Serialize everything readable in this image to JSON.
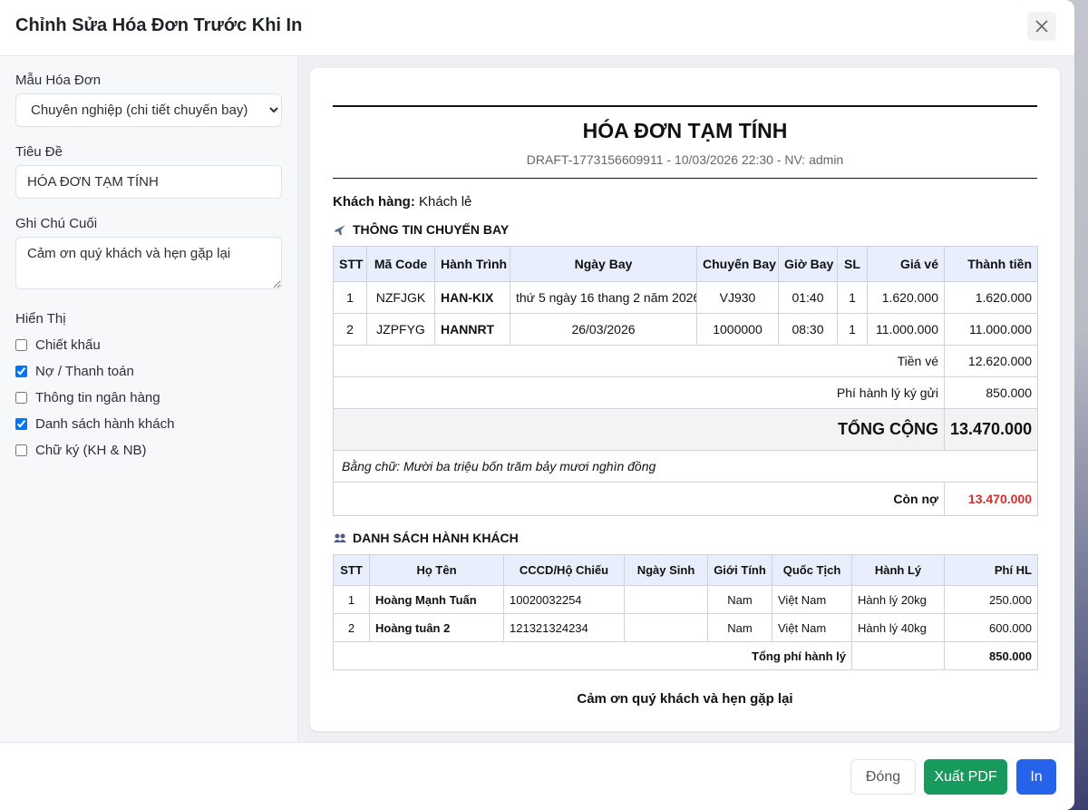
{
  "header": {
    "title": "Chỉnh Sửa Hóa Đơn Trước Khi In"
  },
  "form": {
    "template_label": "Mẫu Hóa Đơn",
    "template_value": "Chuyên nghiệp (chi tiết chuyến bay)",
    "title_label": "Tiêu Đề",
    "title_value": "HÓA ĐƠN TẠM TÍNH",
    "note_label": "Ghi Chú Cuối",
    "note_value": "Cảm ơn quý khách và hẹn gặp lại",
    "display_label": "Hiển Thị",
    "options": [
      {
        "label": "Chiết khấu",
        "checked": false
      },
      {
        "label": "Nợ / Thanh toán",
        "checked": true
      },
      {
        "label": "Thông tin ngân hàng",
        "checked": false
      },
      {
        "label": "Danh sách hành khách",
        "checked": true
      },
      {
        "label": "Chữ ký (KH & NB)",
        "checked": false
      }
    ]
  },
  "invoice": {
    "title": "HÓA ĐƠN TẠM TÍNH",
    "meta": "DRAFT-1773156609911 - 10/03/2026 22:30 - NV: admin",
    "customer_label": "Khách hàng:",
    "customer": "Khách lẻ",
    "flights": {
      "heading": "THÔNG TIN CHUYẾN BAY",
      "columns": [
        "STT",
        "Mã Code",
        "Hành Trình",
        "Ngày Bay",
        "Chuyến Bay",
        "Giờ Bay",
        "SL",
        "Giá vé",
        "Thành tiền"
      ],
      "rows": [
        [
          "1",
          "NZFJGK",
          "HAN-KIX",
          "thứ 5 ngày 16 thang 2 năm 2026",
          "VJ930",
          "01:40",
          "1",
          "1.620.000",
          "1.620.000"
        ],
        [
          "2",
          "JZPFYG",
          "HANNRT",
          "26/03/2026",
          "1000000",
          "08:30",
          "1",
          "11.000.000",
          "11.000.000"
        ]
      ],
      "summary": [
        {
          "label": "Tiền vé",
          "value": "12.620.000"
        },
        {
          "label": "Phí hành lý ký gửi",
          "value": "850.000"
        }
      ],
      "grand_total": {
        "label": "TỔNG CỘNG",
        "value": "13.470.000"
      },
      "amount_in_words": "Bằng chữ: Mười ba triệu bốn trăm bảy mươi nghìn đồng",
      "debt": {
        "label": "Còn nợ",
        "value": "13.470.000"
      }
    },
    "passengers": {
      "heading": "DANH SÁCH HÀNH KHÁCH",
      "columns": [
        "STT",
        "Họ Tên",
        "CCCD/Hộ Chiếu",
        "Ngày Sinh",
        "Giới Tính",
        "Quốc Tịch",
        "Hành Lý",
        "Phí HL"
      ],
      "rows": [
        {
          "stt": "1",
          "name": "Hoàng Mạnh Tuấn",
          "id": "10020032254",
          "gender": "Nam",
          "nationality": "Việt Nam",
          "baggage": "Hành lý 20kg",
          "fee": "250.000"
        },
        {
          "stt": "2",
          "name": "Hoàng tuân 2",
          "id": "121321324234",
          "gender": "Nam",
          "nationality": "Việt Nam",
          "baggage": "Hành lý 40kg",
          "fee": "600.000"
        }
      ],
      "total": {
        "label": "Tổng phí hành lý",
        "value": "850.000"
      }
    },
    "closing": "Cảm ơn quý khách và hẹn gặp lại"
  },
  "footer": {
    "close": "Đóng",
    "export_pdf": "Xuất PDF",
    "print": "In"
  }
}
